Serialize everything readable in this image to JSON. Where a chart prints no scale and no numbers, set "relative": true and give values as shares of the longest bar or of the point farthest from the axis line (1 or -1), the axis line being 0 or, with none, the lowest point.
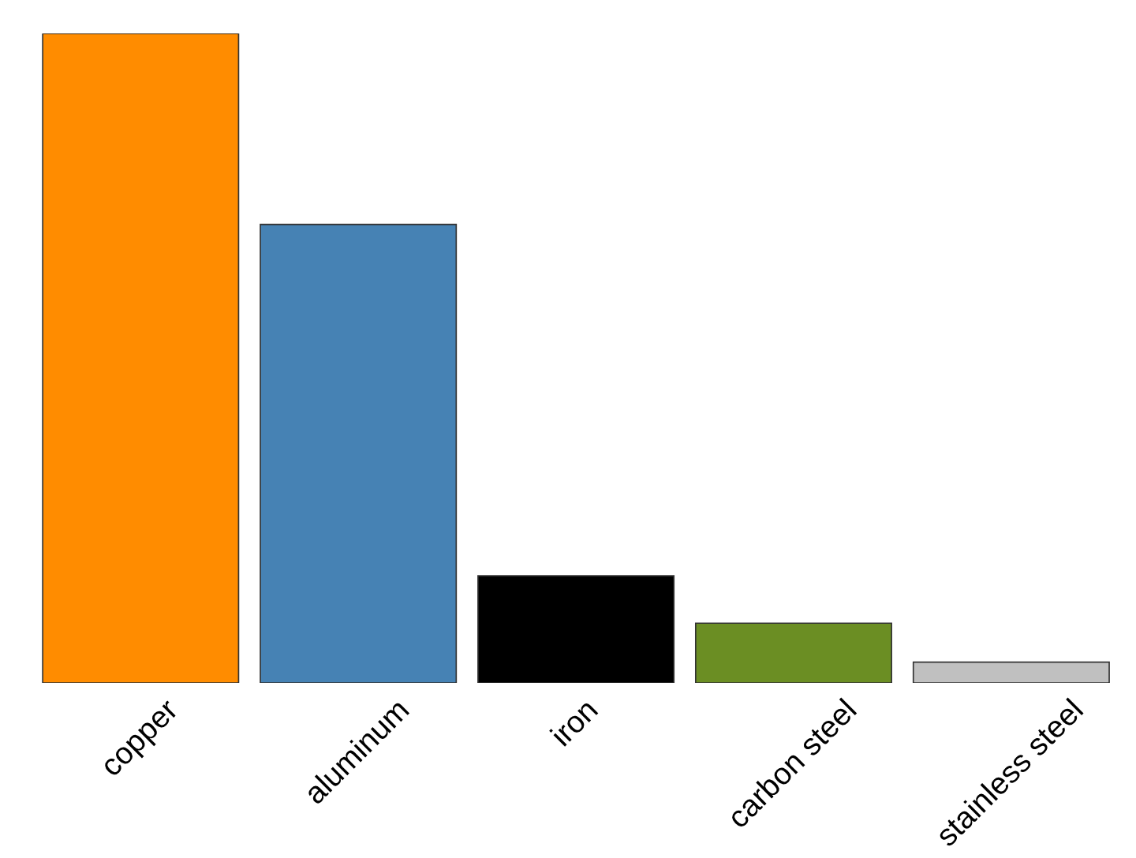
{
  "chart_data": {
    "type": "bar",
    "relative": true,
    "categories": [
      "copper",
      "aluminum",
      "iron",
      "carbon steel",
      "stainless steel"
    ],
    "values": [
      1,
      0.706,
      0.165,
      0.092,
      0.032
    ],
    "colors": [
      "#ff8c00",
      "#4682b4",
      "#000000",
      "#6b8e23",
      "#c0c0c0"
    ],
    "grid": false,
    "legend": false
  }
}
